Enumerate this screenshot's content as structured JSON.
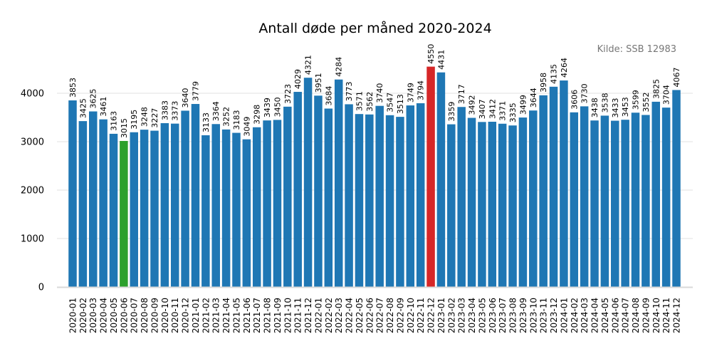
{
  "chart_data": {
    "type": "bar",
    "title": "Antall døde per måned 2020-2024",
    "annotation": "Kilde: SSB 12983",
    "xlabel": "",
    "ylabel": "",
    "ylim": [
      0,
      4600
    ],
    "yticks": [
      0,
      1000,
      2000,
      3000,
      4000
    ],
    "grid": true,
    "colors": {
      "default": "#1f77b4",
      "max": "#d62728",
      "min": "#2ca02c"
    },
    "categories": [
      "2020-01",
      "2020-02",
      "2020-03",
      "2020-04",
      "2020-05",
      "2020-06",
      "2020-07",
      "2020-08",
      "2020-09",
      "2020-10",
      "2020-11",
      "2020-12",
      "2021-01",
      "2021-02",
      "2021-03",
      "2021-04",
      "2021-05",
      "2021-06",
      "2021-07",
      "2021-08",
      "2021-09",
      "2021-10",
      "2021-11",
      "2021-12",
      "2022-01",
      "2022-02",
      "2022-03",
      "2022-04",
      "2022-05",
      "2022-06",
      "2022-07",
      "2022-08",
      "2022-09",
      "2022-10",
      "2022-11",
      "2022-12",
      "2023-01",
      "2023-02",
      "2023-03",
      "2023-04",
      "2023-05",
      "2023-06",
      "2023-07",
      "2023-08",
      "2023-09",
      "2023-10",
      "2023-11",
      "2023-12",
      "2024-01",
      "2024-02",
      "2024-03",
      "2024-04",
      "2024-05",
      "2024-06",
      "2024-07",
      "2024-08",
      "2024-09",
      "2024-10",
      "2024-11",
      "2024-12"
    ],
    "values": [
      3853,
      3425,
      3625,
      3461,
      3163,
      3015,
      3195,
      3248,
      3227,
      3383,
      3373,
      3640,
      3779,
      3133,
      3364,
      3252,
      3183,
      3049,
      3298,
      3439,
      3450,
      3723,
      4029,
      4321,
      3951,
      3684,
      4284,
      3773,
      3571,
      3562,
      3740,
      3547,
      3513,
      3749,
      3794,
      4550,
      4431,
      3359,
      3717,
      3492,
      3407,
      3412,
      3371,
      3335,
      3499,
      3644,
      3958,
      4135,
      4264,
      3606,
      3730,
      3438,
      3538,
      3433,
      3453,
      3599,
      3552,
      3825,
      3704,
      4067
    ]
  }
}
